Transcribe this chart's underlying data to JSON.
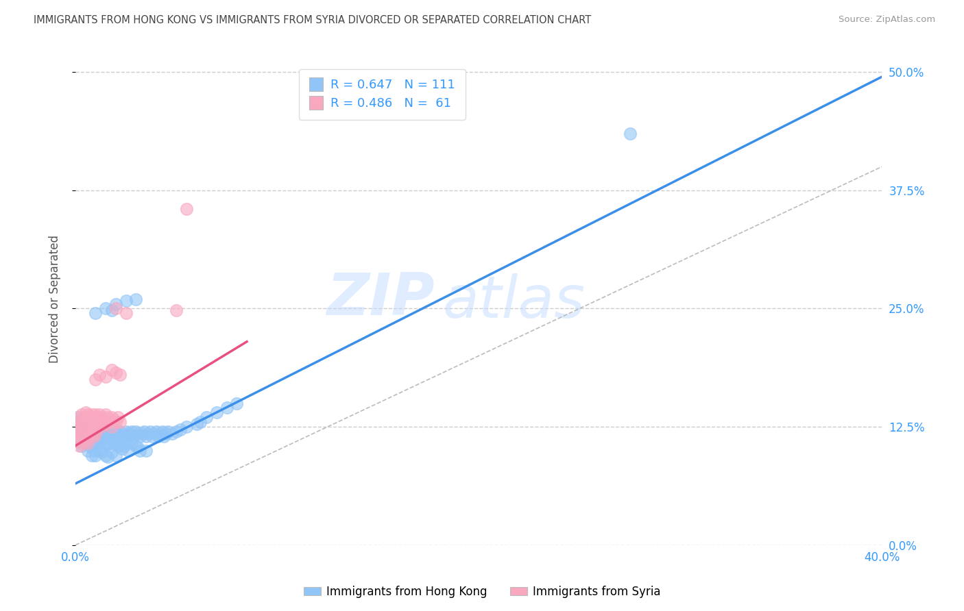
{
  "title": "IMMIGRANTS FROM HONG KONG VS IMMIGRANTS FROM SYRIA DIVORCED OR SEPARATED CORRELATION CHART",
  "source": "Source: ZipAtlas.com",
  "ylabel_label": "Divorced or Separated",
  "legend_label_1": "Immigrants from Hong Kong",
  "legend_label_2": "Immigrants from Syria",
  "color_hk": "#92C5F7",
  "color_syria": "#F9A8C0",
  "color_hk_line": "#3B8FE8",
  "color_syria_line": "#E85080",
  "color_dashed": "#CCCCCC",
  "watermark_zip": "ZIP",
  "watermark_atlas": "atlas",
  "xlim": [
    0.0,
    0.4
  ],
  "ylim": [
    0.0,
    0.52
  ],
  "yticks": [
    0.0,
    0.125,
    0.25,
    0.375,
    0.5
  ],
  "ytick_labels": [
    "0.0%",
    "12.5%",
    "25.0%",
    "37.5%",
    "50.0%"
  ],
  "xticks": [
    0.0,
    0.1,
    0.2,
    0.3,
    0.4
  ],
  "xtick_labels": [
    "0.0%",
    "",
    "",
    "",
    "40.0%"
  ],
  "hk_line_x": [
    0.0,
    0.4
  ],
  "hk_line_y": [
    0.065,
    0.495
  ],
  "syria_line_x": [
    0.0,
    0.085
  ],
  "syria_line_y": [
    0.105,
    0.215
  ],
  "ref_line_x": [
    0.0,
    0.4
  ],
  "ref_line_y": [
    0.0,
    0.4
  ],
  "hk_scatter": [
    [
      0.001,
      0.135
    ],
    [
      0.001,
      0.13
    ],
    [
      0.002,
      0.125
    ],
    [
      0.002,
      0.11
    ],
    [
      0.003,
      0.13
    ],
    [
      0.003,
      0.12
    ],
    [
      0.003,
      0.105
    ],
    [
      0.004,
      0.125
    ],
    [
      0.004,
      0.115
    ],
    [
      0.005,
      0.13
    ],
    [
      0.005,
      0.12
    ],
    [
      0.005,
      0.108
    ],
    [
      0.006,
      0.125
    ],
    [
      0.006,
      0.118
    ],
    [
      0.006,
      0.1
    ],
    [
      0.007,
      0.128
    ],
    [
      0.007,
      0.115
    ],
    [
      0.007,
      0.105
    ],
    [
      0.008,
      0.13
    ],
    [
      0.008,
      0.12
    ],
    [
      0.008,
      0.108
    ],
    [
      0.008,
      0.095
    ],
    [
      0.009,
      0.125
    ],
    [
      0.009,
      0.115
    ],
    [
      0.009,
      0.1
    ],
    [
      0.01,
      0.13
    ],
    [
      0.01,
      0.12
    ],
    [
      0.01,
      0.108
    ],
    [
      0.01,
      0.095
    ],
    [
      0.011,
      0.128
    ],
    [
      0.011,
      0.118
    ],
    [
      0.011,
      0.105
    ],
    [
      0.012,
      0.125
    ],
    [
      0.012,
      0.115
    ],
    [
      0.012,
      0.1
    ],
    [
      0.013,
      0.122
    ],
    [
      0.013,
      0.112
    ],
    [
      0.013,
      0.098
    ],
    [
      0.014,
      0.125
    ],
    [
      0.014,
      0.115
    ],
    [
      0.015,
      0.12
    ],
    [
      0.015,
      0.108
    ],
    [
      0.015,
      0.095
    ],
    [
      0.016,
      0.118
    ],
    [
      0.016,
      0.106
    ],
    [
      0.016,
      0.093
    ],
    [
      0.017,
      0.12
    ],
    [
      0.017,
      0.108
    ],
    [
      0.018,
      0.125
    ],
    [
      0.018,
      0.112
    ],
    [
      0.018,
      0.098
    ],
    [
      0.019,
      0.12
    ],
    [
      0.019,
      0.108
    ],
    [
      0.02,
      0.122
    ],
    [
      0.02,
      0.11
    ],
    [
      0.02,
      0.095
    ],
    [
      0.021,
      0.118
    ],
    [
      0.021,
      0.105
    ],
    [
      0.022,
      0.12
    ],
    [
      0.022,
      0.108
    ],
    [
      0.023,
      0.115
    ],
    [
      0.023,
      0.102
    ],
    [
      0.024,
      0.118
    ],
    [
      0.024,
      0.105
    ],
    [
      0.025,
      0.12
    ],
    [
      0.025,
      0.108
    ],
    [
      0.026,
      0.115
    ],
    [
      0.026,
      0.1
    ],
    [
      0.027,
      0.118
    ],
    [
      0.028,
      0.12
    ],
    [
      0.028,
      0.108
    ],
    [
      0.029,
      0.115
    ],
    [
      0.03,
      0.12
    ],
    [
      0.03,
      0.105
    ],
    [
      0.031,
      0.118
    ],
    [
      0.031,
      0.103
    ],
    [
      0.032,
      0.115
    ],
    [
      0.032,
      0.1
    ],
    [
      0.033,
      0.118
    ],
    [
      0.034,
      0.12
    ],
    [
      0.035,
      0.115
    ],
    [
      0.035,
      0.1
    ],
    [
      0.036,
      0.118
    ],
    [
      0.037,
      0.12
    ],
    [
      0.038,
      0.115
    ],
    [
      0.039,
      0.118
    ],
    [
      0.04,
      0.12
    ],
    [
      0.041,
      0.115
    ],
    [
      0.042,
      0.118
    ],
    [
      0.043,
      0.12
    ],
    [
      0.044,
      0.115
    ],
    [
      0.045,
      0.118
    ],
    [
      0.046,
      0.12
    ],
    [
      0.048,
      0.118
    ],
    [
      0.05,
      0.12
    ],
    [
      0.052,
      0.122
    ],
    [
      0.055,
      0.125
    ],
    [
      0.06,
      0.128
    ],
    [
      0.062,
      0.13
    ],
    [
      0.065,
      0.135
    ],
    [
      0.07,
      0.14
    ],
    [
      0.075,
      0.145
    ],
    [
      0.08,
      0.15
    ],
    [
      0.01,
      0.245
    ],
    [
      0.015,
      0.25
    ],
    [
      0.018,
      0.248
    ],
    [
      0.02,
      0.255
    ],
    [
      0.025,
      0.258
    ],
    [
      0.03,
      0.26
    ],
    [
      0.275,
      0.435
    ]
  ],
  "syria_scatter": [
    [
      0.001,
      0.13
    ],
    [
      0.001,
      0.12
    ],
    [
      0.001,
      0.11
    ],
    [
      0.002,
      0.135
    ],
    [
      0.002,
      0.125
    ],
    [
      0.002,
      0.115
    ],
    [
      0.002,
      0.105
    ],
    [
      0.003,
      0.138
    ],
    [
      0.003,
      0.128
    ],
    [
      0.003,
      0.118
    ],
    [
      0.003,
      0.108
    ],
    [
      0.004,
      0.135
    ],
    [
      0.004,
      0.125
    ],
    [
      0.004,
      0.115
    ],
    [
      0.005,
      0.14
    ],
    [
      0.005,
      0.13
    ],
    [
      0.005,
      0.12
    ],
    [
      0.005,
      0.11
    ],
    [
      0.006,
      0.138
    ],
    [
      0.006,
      0.128
    ],
    [
      0.006,
      0.118
    ],
    [
      0.006,
      0.108
    ],
    [
      0.007,
      0.135
    ],
    [
      0.007,
      0.125
    ],
    [
      0.007,
      0.115
    ],
    [
      0.008,
      0.138
    ],
    [
      0.008,
      0.128
    ],
    [
      0.008,
      0.118
    ],
    [
      0.009,
      0.135
    ],
    [
      0.009,
      0.125
    ],
    [
      0.009,
      0.115
    ],
    [
      0.01,
      0.138
    ],
    [
      0.01,
      0.128
    ],
    [
      0.01,
      0.118
    ],
    [
      0.011,
      0.135
    ],
    [
      0.011,
      0.125
    ],
    [
      0.012,
      0.138
    ],
    [
      0.012,
      0.128
    ],
    [
      0.013,
      0.135
    ],
    [
      0.013,
      0.125
    ],
    [
      0.014,
      0.13
    ],
    [
      0.015,
      0.138
    ],
    [
      0.015,
      0.128
    ],
    [
      0.016,
      0.135
    ],
    [
      0.017,
      0.13
    ],
    [
      0.018,
      0.135
    ],
    [
      0.018,
      0.125
    ],
    [
      0.019,
      0.132
    ],
    [
      0.02,
      0.13
    ],
    [
      0.021,
      0.135
    ],
    [
      0.022,
      0.13
    ],
    [
      0.01,
      0.175
    ],
    [
      0.012,
      0.18
    ],
    [
      0.015,
      0.178
    ],
    [
      0.018,
      0.185
    ],
    [
      0.02,
      0.182
    ],
    [
      0.022,
      0.18
    ],
    [
      0.02,
      0.25
    ],
    [
      0.025,
      0.245
    ],
    [
      0.05,
      0.248
    ],
    [
      0.055,
      0.355
    ]
  ]
}
